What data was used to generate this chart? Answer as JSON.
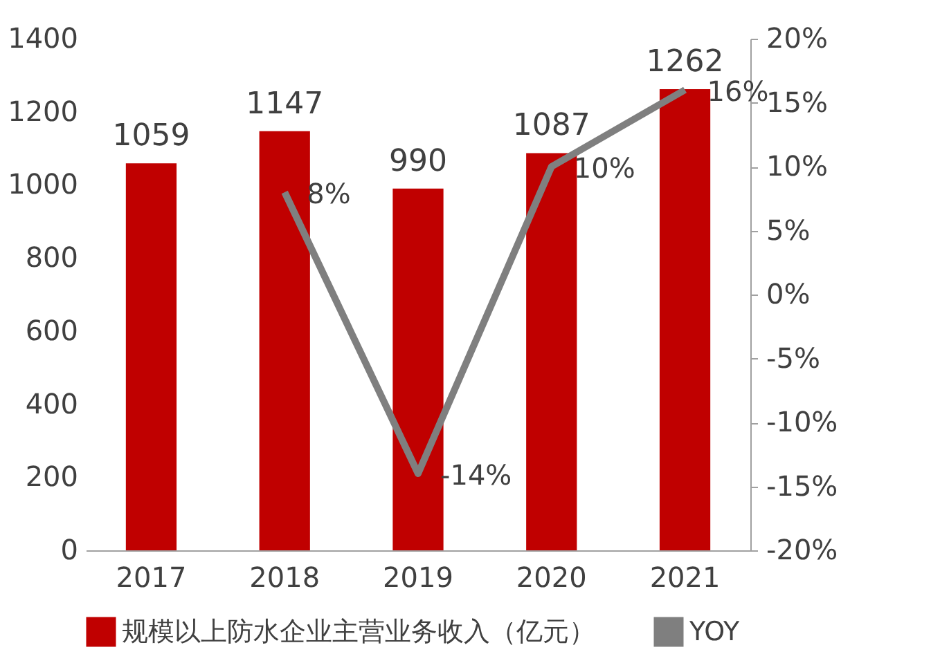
{
  "chart_data": {
    "type": "bar",
    "categories": [
      "2017",
      "2018",
      "2019",
      "2020",
      "2021"
    ],
    "series": [
      {
        "name": "规模以上防水企业主营业务收入（亿元）",
        "color": "#c00000",
        "values": [
          1059,
          1147,
          990,
          1087,
          1262
        ],
        "value_labels": [
          "1059",
          "1147",
          "990",
          "1087",
          "1262"
        ]
      },
      {
        "name": "YOY",
        "type": "line",
        "axis": "y2",
        "color": "#7f7f7f",
        "values": [
          null,
          8,
          -14,
          10,
          16
        ],
        "value_labels": [
          null,
          "8%",
          "-14%",
          "10%",
          "16%"
        ]
      }
    ],
    "ylim": [
      0,
      1400
    ],
    "yticks": [
      0,
      200,
      400,
      600,
      800,
      1000,
      1200,
      1400
    ],
    "y2lim": [
      -20,
      20
    ],
    "y2ticks": [
      {
        "value": -20,
        "label": "-20%"
      },
      {
        "value": -15,
        "label": "-15%"
      },
      {
        "value": -10,
        "label": "-10%"
      },
      {
        "value": -5,
        "label": "-5%"
      },
      {
        "value": 0,
        "label": "0%"
      },
      {
        "value": 5,
        "label": "5%"
      },
      {
        "value": 10,
        "label": "10%"
      },
      {
        "value": 15,
        "label": "15%"
      },
      {
        "value": 20,
        "label": "20%"
      }
    ],
    "grid": false,
    "legend": "bottom",
    "marker": "none",
    "line_style": "solid"
  }
}
